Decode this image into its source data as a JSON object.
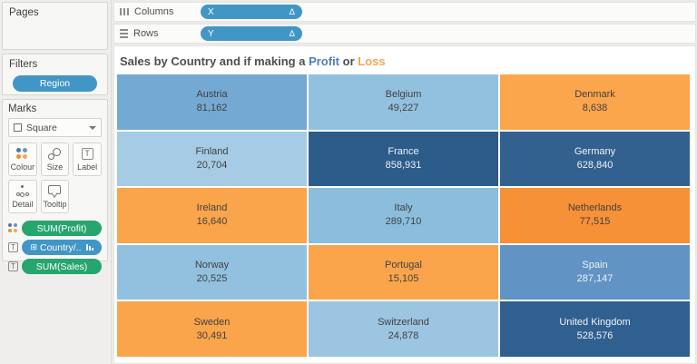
{
  "sidebar": {
    "pages": {
      "label": "Pages"
    },
    "filters": {
      "label": "Filters",
      "pills": [
        {
          "label": "Region"
        }
      ]
    },
    "marks": {
      "label": "Marks",
      "mark_type_selector": {
        "value": "Square"
      },
      "buttons": [
        {
          "label": "Colour",
          "icon": "colour-dots-icon"
        },
        {
          "label": "Size",
          "icon": "size-circles-icon"
        },
        {
          "label": "Label",
          "icon": "label-t-icon"
        },
        {
          "label": "Detail",
          "icon": "detail-dots-icon"
        },
        {
          "label": "Tooltip",
          "icon": "tooltip-bubble-icon"
        }
      ],
      "pills": [
        {
          "label": "SUM(Profit)",
          "kind": "measure-green",
          "left_icon": "colour-dots-icon"
        },
        {
          "label": "Country/..",
          "kind": "dimension-blue",
          "left_icon": "label-t-icon",
          "prefix_glyph": "⊞",
          "right_icon": "sort-descending-icon"
        },
        {
          "label": "SUM(Sales)",
          "kind": "measure-green",
          "left_icon": "label-t-icon"
        }
      ]
    }
  },
  "shelves": {
    "columns": {
      "label": "Columns",
      "pill": {
        "label": "X",
        "badge": "Δ"
      }
    },
    "rows": {
      "label": "Rows",
      "pill": {
        "label": "Y",
        "badge": "Δ"
      }
    }
  },
  "title": {
    "prefix": "Sales by Country and if making a ",
    "profit_word": "Profit",
    "connector": " or ",
    "loss_word": "Loss"
  },
  "colors": {
    "profit_blue": "#4d7ebe",
    "loss_orange": "#f2a45c",
    "pill_blue": "#4296c6",
    "pill_green": "#26a56f"
  },
  "chart_data": {
    "type": "heatmap",
    "title": "Sales by Country and if making a Profit or Loss",
    "legend": "colour = SUM(Profit): blue = profit, orange = loss; label = Country + SUM(Sales)",
    "grid": {
      "rows": 5,
      "cols": 3
    },
    "cells": [
      {
        "country": "Austria",
        "sales": "81,162",
        "color": "#74a9d3",
        "text_color": "#414141"
      },
      {
        "country": "Belgium",
        "sales": "49,227",
        "color": "#92c1df",
        "text_color": "#414141"
      },
      {
        "country": "Denmark",
        "sales": "8,638",
        "color": "#fba64c",
        "text_color": "#414141"
      },
      {
        "country": "Finland",
        "sales": "20,704",
        "color": "#a5cce4",
        "text_color": "#414141"
      },
      {
        "country": "France",
        "sales": "858,931",
        "color": "#2c5c8a",
        "text_color": "#eef2f7"
      },
      {
        "country": "Germany",
        "sales": "628,840",
        "color": "#32618f",
        "text_color": "#eef2f7"
      },
      {
        "country": "Ireland",
        "sales": "16,640",
        "color": "#faa54b",
        "text_color": "#414141"
      },
      {
        "country": "Italy",
        "sales": "289,710",
        "color": "#8bbedd",
        "text_color": "#414141"
      },
      {
        "country": "Netherlands",
        "sales": "77,515",
        "color": "#f69138",
        "text_color": "#414141"
      },
      {
        "country": "Norway",
        "sales": "20,525",
        "color": "#92c1df",
        "text_color": "#414141"
      },
      {
        "country": "Portugal",
        "sales": "15,105",
        "color": "#faa54b",
        "text_color": "#414141"
      },
      {
        "country": "Spain",
        "sales": "287,147",
        "color": "#6193c4",
        "text_color": "#eef2f7"
      },
      {
        "country": "Sweden",
        "sales": "30,491",
        "color": "#faa54b",
        "text_color": "#414141"
      },
      {
        "country": "Switzerland",
        "sales": "24,878",
        "color": "#9cc5e1",
        "text_color": "#414141"
      },
      {
        "country": "United Kingdom",
        "sales": "528,576",
        "color": "#306090",
        "text_color": "#eef2f7"
      }
    ]
  }
}
